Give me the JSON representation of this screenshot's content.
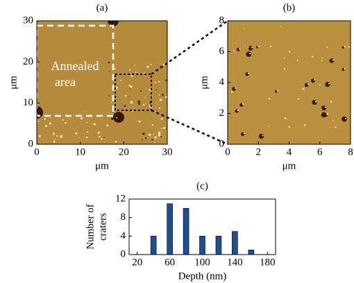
{
  "chart_data": [
    {
      "type": "image",
      "panel_label": "(a)",
      "xlabel": "μm",
      "ylabel": "μm",
      "annotation": [
        "Annealed",
        "area"
      ],
      "xlim": [
        0,
        30
      ],
      "xticks": [
        0,
        10,
        20,
        30
      ],
      "ylim": [
        0,
        30
      ],
      "yticks": [
        0,
        10,
        20,
        30
      ]
    },
    {
      "type": "image",
      "panel_label": "(b)",
      "xlabel": "μm",
      "ylabel": "μm",
      "xlim": [
        0,
        8
      ],
      "xticks": [
        0,
        2,
        4,
        6,
        8
      ],
      "ylim": [
        0,
        8
      ],
      "yticks": [
        0,
        2,
        4,
        6,
        8
      ]
    },
    {
      "type": "bar",
      "panel_label": "(c)",
      "xlabel": "Depth (nm)",
      "ylabel": [
        "Number of",
        "craters"
      ],
      "x": [
        40,
        60,
        80,
        100,
        120,
        140,
        160
      ],
      "values": [
        4,
        11,
        10,
        4,
        4,
        5,
        1
      ],
      "color": "#1f4e99",
      "xlim": [
        10,
        190
      ],
      "xticks": [
        20,
        60,
        100,
        140,
        180
      ],
      "ylim": [
        0,
        12
      ],
      "yticks": [
        0,
        4,
        8,
        12
      ]
    }
  ]
}
